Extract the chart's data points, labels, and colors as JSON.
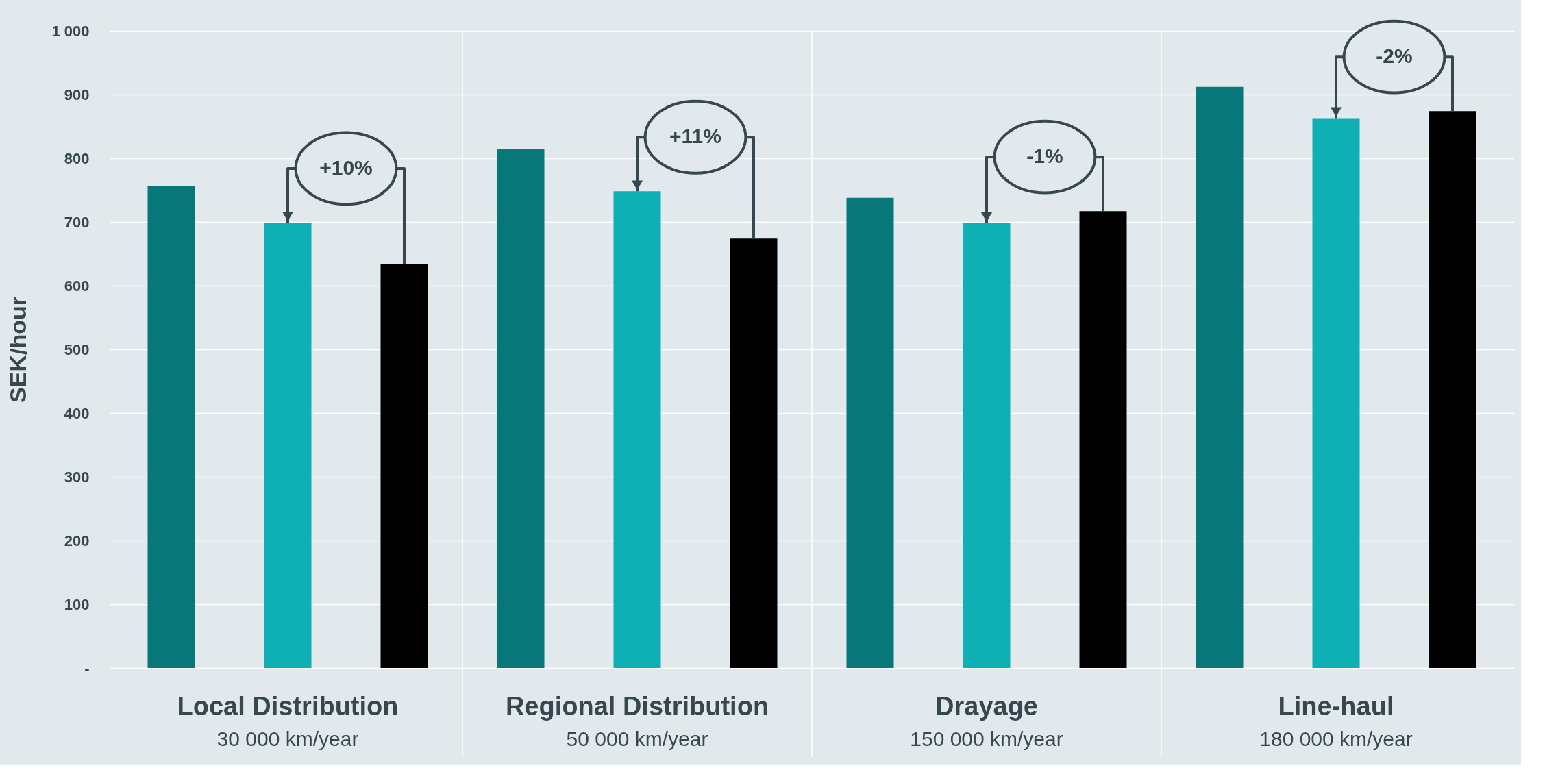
{
  "chart_data": {
    "type": "bar",
    "ylabel": "SEK/hour",
    "categories": [
      "Local Distribution",
      "Regional Distribution",
      "Drayage",
      "Line-haul"
    ],
    "series": [
      {
        "color": "#08777a",
        "values": [
          756,
          815,
          738,
          912
        ]
      },
      {
        "color": "#0eafb5",
        "values": [
          699,
          748,
          698,
          863
        ]
      },
      {
        "color": "#000000",
        "values": [
          634,
          674,
          717,
          874
        ]
      }
    ],
    "ylim": [
      0,
      1000
    ],
    "yticks": [
      {
        "value": 0,
        "label": "-"
      },
      100,
      200,
      300,
      400,
      500,
      600,
      700,
      800,
      900,
      {
        "value": 1000,
        "label": "1 000"
      }
    ],
    "grid": "y",
    "annotations": [
      "+10%",
      "+11%",
      "-1%",
      "-2%",
      "30 000 km/year",
      "50 000 km/year",
      "150 000 km/year",
      "180 000 km/year"
    ]
  }
}
